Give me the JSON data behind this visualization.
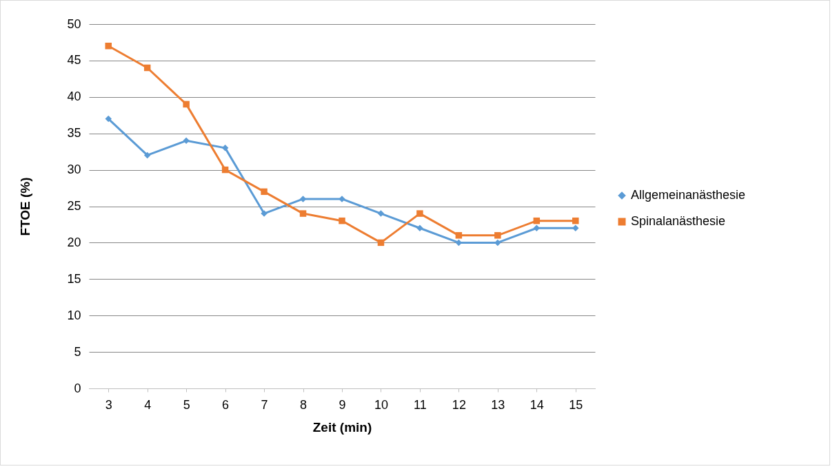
{
  "chart_data": {
    "type": "line",
    "xlabel": "Zeit (min)",
    "ylabel": "FTOE (%)",
    "categories": [
      "3",
      "4",
      "5",
      "6",
      "7",
      "8",
      "9",
      "10",
      "11",
      "12",
      "13",
      "14",
      "15"
    ],
    "series": [
      {
        "name": "Allgemeinanästhesie",
        "color": "#5b9bd5",
        "marker": "diamond",
        "values": [
          37,
          32,
          34,
          33,
          24,
          26,
          26,
          24,
          22,
          20,
          20,
          22,
          22
        ]
      },
      {
        "name": "Spinalanästhesie",
        "color": "#ed7d31",
        "marker": "square",
        "values": [
          47,
          44,
          39,
          30,
          27,
          24,
          23,
          20,
          24,
          21,
          21,
          23,
          23
        ]
      }
    ],
    "ylim": [
      0,
      50
    ],
    "yticks": [
      0,
      5,
      10,
      15,
      20,
      25,
      30,
      35,
      40,
      45,
      50
    ],
    "grid": "y",
    "legend": "right"
  }
}
